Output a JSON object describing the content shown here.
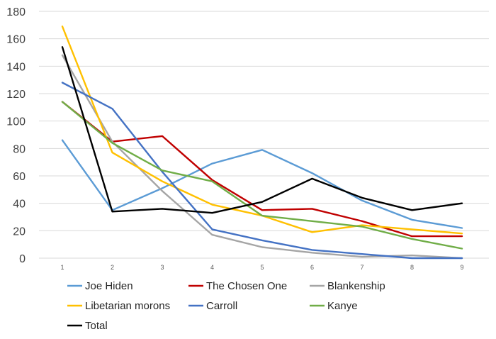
{
  "chart_data": {
    "type": "line",
    "title": "",
    "xlabel": "",
    "ylabel": "",
    "categories": [
      "1",
      "2",
      "3",
      "4",
      "5",
      "6",
      "7",
      "8",
      "9"
    ],
    "ylim": [
      0,
      180
    ],
    "yticks": [
      "0",
      "20",
      "40",
      "60",
      "80",
      "100",
      "120",
      "140",
      "160",
      "180"
    ],
    "grid": true,
    "legend_position": "bottom-left",
    "series": [
      {
        "name": "Joe Hiden",
        "color": "#5b9bd5",
        "values": [
          86,
          35,
          51,
          69,
          79,
          62,
          42,
          28,
          22
        ]
      },
      {
        "name": "The Chosen One",
        "color": "#c00000",
        "values": [
          114,
          85,
          89,
          57,
          35,
          36,
          27,
          16,
          16
        ]
      },
      {
        "name": "Blankenship",
        "color": "#a5a5a5",
        "values": [
          148,
          85,
          49,
          17,
          8,
          4,
          1,
          2,
          0
        ]
      },
      {
        "name": "Libetarian morons",
        "color": "#ffc000",
        "values": [
          169,
          77,
          56,
          39,
          31,
          19,
          24,
          21,
          18
        ]
      },
      {
        "name": "Carroll",
        "color": "#4472c4",
        "values": [
          128,
          109,
          63,
          21,
          13,
          6,
          3,
          0,
          0
        ]
      },
      {
        "name": "Kanye",
        "color": "#70ad47",
        "values": [
          114,
          84,
          64,
          56,
          31,
          27,
          23,
          14,
          7
        ]
      },
      {
        "name": "Total",
        "color": "#000000",
        "values": [
          154,
          34,
          36,
          33,
          41,
          58,
          44,
          35,
          40
        ]
      }
    ]
  }
}
